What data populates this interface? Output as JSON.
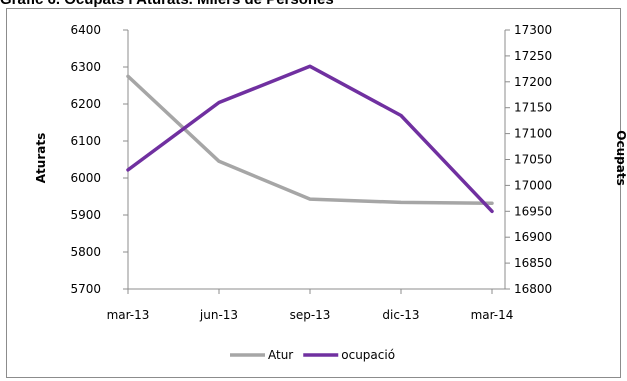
{
  "chart_data": {
    "type": "line",
    "title": "Gràfic 6. Ocupats i Aturats. Milers de Persones",
    "categories": [
      "mar-13",
      "jun-13",
      "sep-13",
      "dic-13",
      "mar-14"
    ],
    "series": [
      {
        "name": "Atur",
        "axis": "left",
        "color": "#a6a6a6",
        "values": [
          6275,
          6045,
          5943,
          5934,
          5932
        ]
      },
      {
        "name": "ocupació",
        "axis": "right",
        "color": "#7030a0",
        "values": [
          17030,
          17160,
          17230,
          17135,
          16950
        ]
      }
    ],
    "ylabel_left": "Aturats",
    "ylabel_right": "Ocupats",
    "ylim_left": [
      5700,
      6400
    ],
    "ylim_right": [
      16800,
      17300
    ],
    "yticks_left": [
      "6400",
      "6300",
      "6200",
      "6100",
      "6000",
      "5900",
      "5800",
      "5700"
    ],
    "yticks_right": [
      "17300",
      "17250",
      "17200",
      "17150",
      "17100",
      "17050",
      "17000",
      "16950",
      "16900",
      "16850",
      "16800"
    ],
    "grid": false,
    "legend_position": "bottom"
  }
}
